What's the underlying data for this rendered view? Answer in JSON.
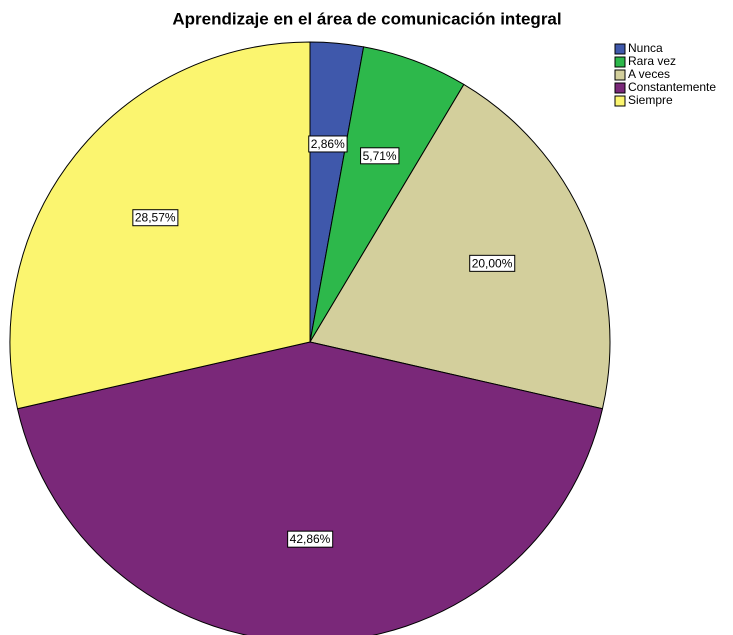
{
  "chart_data": {
    "type": "pie",
    "title": "Aprendizaje en el área de comunicación integral",
    "categories": [
      "Nunca",
      "Rara vez",
      "A veces",
      "Constantemente",
      "Siempre"
    ],
    "values": [
      2.86,
      5.71,
      20.0,
      42.86,
      28.57
    ],
    "value_labels": [
      "2,86%",
      "5,71%",
      "20,00%",
      "42,86%",
      "28,57%"
    ],
    "colors": [
      "#3f58ab",
      "#2db84b",
      "#d3cf9c",
      "#7a2879",
      "#fbf56f"
    ],
    "legend": "upper right"
  }
}
